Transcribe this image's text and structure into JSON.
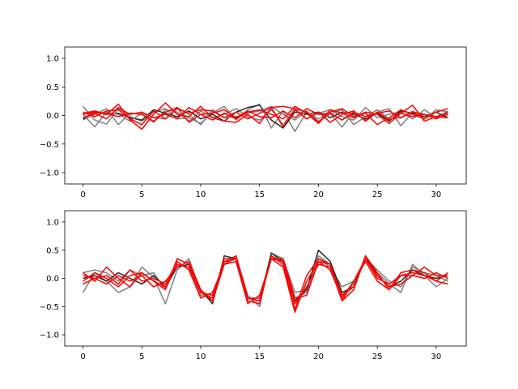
{
  "chart_data": [
    {
      "type": "line",
      "xlim": [
        -1.55,
        32.55
      ],
      "ylim": [
        -1.2,
        1.2
      ],
      "xticks": [
        0,
        5,
        10,
        15,
        20,
        25,
        30
      ],
      "yticks": [
        -1.0,
        -0.5,
        0.0,
        0.5,
        1.0
      ],
      "xtick_labels": [
        "0",
        "5",
        "10",
        "15",
        "20",
        "25",
        "30"
      ],
      "ytick_labels": [
        "−1.0",
        "−0.5",
        "0.0",
        "0.5",
        "1.0"
      ],
      "x": [
        0,
        1,
        2,
        3,
        4,
        5,
        6,
        7,
        8,
        9,
        10,
        11,
        12,
        13,
        14,
        15,
        16,
        17,
        18,
        19,
        20,
        21,
        22,
        23,
        24,
        25,
        26,
        27,
        28,
        29,
        30,
        31
      ],
      "series": [
        {
          "color": "#7f7f7f",
          "values": [
            0.16,
            -0.08,
            -0.15,
            0.12,
            -0.02,
            -0.1,
            0.06,
            0.12,
            -0.06,
            -0.04,
            -0.14,
            0.05,
            0.16,
            -0.08,
            0.1,
            0.2,
            -0.22,
            0.08,
            -0.28,
            0.06,
            -0.06,
            0.04,
            -0.2,
            0.05,
            -0.08,
            0.06,
            0.12,
            -0.18,
            0.05,
            0.02,
            -0.06,
            0.08
          ]
        },
        {
          "color": "#7f7f7f",
          "values": [
            -0.08,
            0.02,
            0.12,
            -0.16,
            0.04,
            0.02,
            -0.12,
            0.1,
            0.06,
            -0.1,
            0.08,
            -0.04,
            0.02,
            0.12,
            -0.02,
            -0.08,
            0.1,
            -0.16,
            0.12,
            -0.06,
            0.04,
            0.1,
            -0.02,
            -0.08,
            0.14,
            -0.04,
            0.02,
            0.06,
            -0.06,
            0.1,
            -0.04,
            0.04
          ]
        },
        {
          "color": "#262626",
          "values": [
            -0.06,
            0.06,
            0.02,
            0.04,
            -0.04,
            -0.08,
            0.1,
            0.04,
            -0.02,
            0.08,
            -0.06,
            0.02,
            -0.1,
            0.06,
            0.14,
            0.18,
            -0.08,
            -0.22,
            0.06,
            0.02,
            0.06,
            -0.04,
            0.06,
            0.02,
            -0.06,
            0.04,
            -0.1,
            0.08,
            0.04,
            -0.02,
            0.06,
            -0.04
          ]
        },
        {
          "color": "#7f7f7f",
          "values": [
            0.02,
            -0.2,
            0.06,
            0.02,
            -0.1,
            0.04,
            -0.04,
            -0.06,
            0.14,
            0.02,
            -0.16,
            0.1,
            -0.04,
            -0.02,
            0.04,
            0.08,
            0.16,
            0.02,
            -0.08,
            0.08,
            -0.1,
            0.02,
            0.1,
            -0.16,
            -0.02,
            0.1,
            -0.06,
            -0.04,
            0.08,
            -0.06,
            0.1,
            0.06
          ]
        },
        {
          "color": "#ff0000",
          "values": [
            0.04,
            0.08,
            0.02,
            0.2,
            -0.08,
            -0.24,
            0.02,
            0.22,
            0.02,
            -0.02,
            0.16,
            -0.04,
            -0.1,
            -0.12,
            0.02,
            -0.14,
            0.14,
            0.16,
            0.12,
            0.06,
            -0.12,
            0.06,
            0.12,
            -0.02,
            0.04,
            -0.16,
            -0.04,
            0.1,
            0.02,
            -0.06,
            0.06,
            0.12
          ]
        },
        {
          "color": "#ff0000",
          "values": [
            0.06,
            -0.02,
            0.08,
            0.1,
            -0.06,
            -0.16,
            0.08,
            -0.06,
            0.12,
            0.04,
            0.1,
            0.08,
            -0.04,
            0.06,
            -0.06,
            0.04,
            0.14,
            -0.2,
            0.1,
            -0.06,
            0.06,
            -0.12,
            0.02,
            0.08,
            -0.1,
            0.06,
            -0.08,
            0.04,
            0.18,
            -0.1,
            -0.02,
            0.06
          ]
        },
        {
          "color": "#ff0000",
          "values": [
            -0.04,
            0.04,
            -0.06,
            0.14,
            0.02,
            0.06,
            -0.04,
            0.02,
            -0.06,
            0.14,
            0.02,
            -0.08,
            0.04,
            -0.06,
            0.06,
            0.1,
            0.02,
            -0.06,
            0.16,
            0.04,
            -0.14,
            0.1,
            0.04,
            -0.04,
            0.06,
            0.02,
            -0.14,
            0.04,
            -0.02,
            0.02,
            -0.06,
            0.02
          ]
        },
        {
          "color": "#ff0000",
          "values": [
            0.02,
            0.06,
            0.04,
            -0.02,
            0.04,
            0.02,
            -0.1,
            0.06,
            0.14,
            -0.12,
            0.02,
            0.04,
            0.1,
            -0.04,
            0.08,
            -0.02,
            -0.04,
            0.08,
            -0.04,
            0.12,
            0.02,
            0.04,
            -0.08,
            0.06,
            -0.02,
            0.04,
            0.08,
            -0.04,
            0.06,
            0.02,
            -0.02,
            -0.04
          ]
        }
      ]
    },
    {
      "type": "line",
      "xlim": [
        -1.55,
        32.55
      ],
      "ylim": [
        -1.2,
        1.2
      ],
      "xticks": [
        0,
        5,
        10,
        15,
        20,
        25,
        30
      ],
      "yticks": [
        -1.0,
        -0.5,
        0.0,
        0.5,
        1.0
      ],
      "xtick_labels": [
        "0",
        "5",
        "10",
        "15",
        "20",
        "25",
        "30"
      ],
      "ytick_labels": [
        "−1.0",
        "−0.5",
        "0.0",
        "0.5",
        "1.0"
      ],
      "x": [
        0,
        1,
        2,
        3,
        4,
        5,
        6,
        7,
        8,
        9,
        10,
        11,
        12,
        13,
        14,
        15,
        16,
        17,
        18,
        19,
        20,
        21,
        22,
        23,
        24,
        25,
        26,
        27,
        28,
        29,
        30,
        31
      ],
      "series": [
        {
          "color": "#7f7f7f",
          "values": [
            -0.25,
            0.1,
            -0.05,
            -0.25,
            -0.15,
            0.2,
            0.02,
            -0.45,
            0.15,
            0.35,
            -0.25,
            -0.4,
            0.3,
            0.4,
            -0.3,
            -0.5,
            0.45,
            0.35,
            -0.25,
            -0.2,
            0.35,
            0.2,
            -0.15,
            -0.05,
            0.3,
            0.1,
            -0.1,
            -0.25,
            0.25,
            0.05,
            -0.15,
            0.0
          ]
        },
        {
          "color": "#7f7f7f",
          "values": [
            0.1,
            0.15,
            0.1,
            -0.05,
            0.15,
            0.05,
            0.1,
            -0.2,
            0.25,
            0.2,
            -0.3,
            -0.35,
            0.25,
            0.35,
            -0.4,
            -0.45,
            0.4,
            0.3,
            -0.35,
            -0.25,
            0.4,
            0.25,
            -0.3,
            -0.1,
            0.35,
            0.15,
            -0.05,
            -0.15,
            0.2,
            0.1,
            0.05,
            -0.05
          ]
        },
        {
          "color": "#262626",
          "values": [
            0.0,
            0.05,
            -0.05,
            0.1,
            0.0,
            -0.1,
            0.05,
            -0.15,
            0.2,
            0.25,
            -0.2,
            -0.45,
            0.4,
            0.35,
            -0.35,
            -0.4,
            0.45,
            0.3,
            -0.4,
            -0.2,
            0.5,
            0.3,
            -0.25,
            -0.15,
            0.4,
            0.05,
            -0.15,
            -0.05,
            0.15,
            0.05,
            0.0,
            0.05
          ]
        },
        {
          "color": "#ff0000",
          "values": [
            0.1,
            -0.05,
            0.2,
            0.0,
            -0.15,
            0.1,
            -0.05,
            -0.2,
            0.35,
            0.25,
            -0.25,
            -0.3,
            0.3,
            0.35,
            -0.4,
            -0.45,
            0.4,
            0.25,
            -0.55,
            0.05,
            0.35,
            0.25,
            -0.4,
            -0.2,
            0.4,
            0.1,
            -0.2,
            0.1,
            0.15,
            0.1,
            -0.05,
            0.1
          ]
        },
        {
          "color": "#ff0000",
          "values": [
            -0.1,
            0.0,
            0.05,
            -0.1,
            0.15,
            -0.05,
            0.0,
            -0.1,
            0.3,
            0.15,
            -0.35,
            -0.25,
            0.25,
            0.4,
            -0.35,
            -0.35,
            0.35,
            0.35,
            -0.35,
            -0.3,
            0.3,
            0.25,
            -0.3,
            -0.15,
            0.35,
            0.0,
            -0.1,
            0.05,
            0.05,
            0.2,
            0.05,
            0.05
          ]
        },
        {
          "color": "#ff0000",
          "values": [
            0.05,
            0.0,
            -0.1,
            0.05,
            -0.05,
            0.05,
            -0.15,
            -0.05,
            0.2,
            0.3,
            -0.2,
            -0.4,
            0.25,
            0.3,
            -0.45,
            -0.3,
            0.35,
            0.2,
            -0.6,
            -0.05,
            0.3,
            0.15,
            -0.35,
            -0.05,
            0.35,
            0.05,
            -0.15,
            -0.1,
            0.05,
            0.0,
            0.1,
            0.0
          ]
        },
        {
          "color": "#ff0000",
          "values": [
            -0.05,
            0.1,
            0.0,
            -0.15,
            0.05,
            0.1,
            -0.05,
            -0.15,
            0.25,
            0.2,
            -0.25,
            -0.35,
            0.35,
            0.35,
            -0.35,
            -0.4,
            0.35,
            0.3,
            -0.45,
            -0.15,
            0.25,
            0.2,
            -0.4,
            -0.05,
            0.3,
            -0.05,
            -0.2,
            0.05,
            0.1,
            0.05,
            -0.05,
            -0.1
          ]
        }
      ]
    }
  ]
}
